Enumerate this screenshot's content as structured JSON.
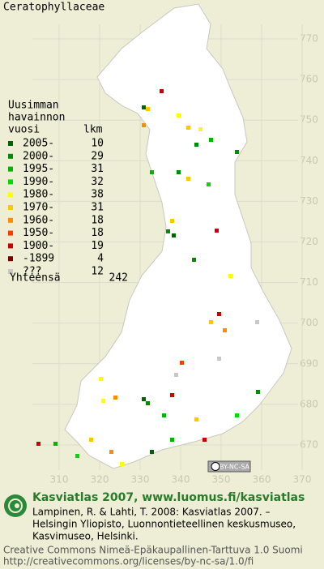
{
  "header": {
    "title": "Ceratophyllaceae"
  },
  "legend": {
    "heading": [
      "Uusimman",
      "havainnon"
    ],
    "year_label": "vuosi",
    "count_label": "lkm",
    "rows": [
      {
        "label": "2005-",
        "count": 10,
        "color": "#006400"
      },
      {
        "label": "2000-",
        "count": 29,
        "color": "#008c00"
      },
      {
        "label": "1995-",
        "count": 31,
        "color": "#00b400"
      },
      {
        "label": "1990-",
        "count": 32,
        "color": "#00dc00"
      },
      {
        "label": "1980-",
        "count": 38,
        "color": "#ffff00"
      },
      {
        "label": "1970-",
        "count": 31,
        "color": "#ffc800"
      },
      {
        "label": "1960-",
        "count": 18,
        "color": "#ff8c00"
      },
      {
        "label": "1950-",
        "count": 18,
        "color": "#ff3c00"
      },
      {
        "label": "1900-",
        "count": 19,
        "color": "#c80000"
      },
      {
        "label": "-1899",
        "count": 4,
        "color": "#780000"
      },
      {
        "label": "???",
        "count": 12,
        "color": "#c8c8c8"
      }
    ],
    "total_label": "Yhteensä",
    "total": 242
  },
  "grid": {
    "y_labels": [
      770,
      760,
      750,
      740,
      730,
      720,
      710,
      700,
      690,
      680,
      670
    ],
    "x_labels": [
      310,
      320,
      330,
      340,
      350,
      360,
      370
    ]
  },
  "license_badge": "BY-NC-SA",
  "footer": {
    "title": "Kasviatlas 2007, www.luomus.fi/kasviatlas",
    "citation": [
      "Lampinen, R. & Lahti, T. 2008: Kasviatlas 2007. –",
      "Helsingin Yliopisto, Luonnontieteellinen keskusmuseo,",
      "Kasvimuseo, Helsinki."
    ],
    "license": [
      "Creative Commons Nimeä-Epäkaupallinen-Tarttuva 1.0 Suomi",
      "http://creativecommons.org/licenses/by-nc-sa/1.0/fi"
    ]
  }
}
